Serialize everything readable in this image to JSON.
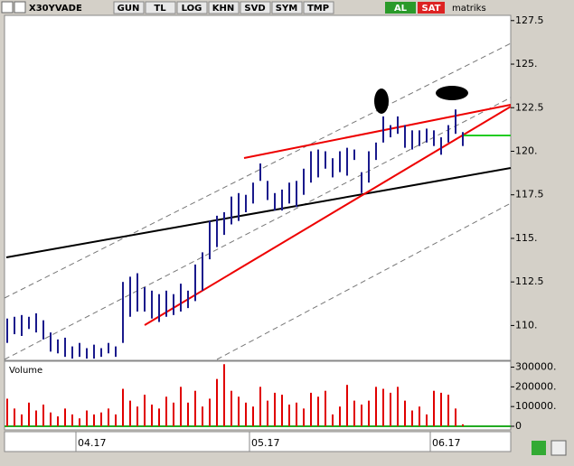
{
  "toolbar": {
    "symbol": "X30YVADE",
    "buttons": [
      "GUN",
      "TL",
      "LOG",
      "KHN",
      "SVD",
      "SYM",
      "TMP"
    ],
    "buy": "AL",
    "sell": "SAT",
    "brand": "matriks"
  },
  "chart_data": [
    {
      "type": "range-bar",
      "color": "#1a1a8c",
      "categories": [
        null,
        null,
        null,
        null,
        null,
        null,
        null,
        null,
        null,
        null,
        null,
        null,
        "04.17",
        null,
        null,
        null,
        null,
        null,
        null,
        null,
        null,
        null,
        null,
        null,
        null,
        null,
        null,
        null,
        null,
        null,
        null,
        null,
        null,
        null,
        null,
        null,
        "05.17",
        null,
        null,
        null,
        null,
        null,
        null,
        null,
        null,
        null,
        null,
        null,
        null,
        null,
        null,
        null,
        null,
        null,
        null,
        null,
        null,
        null,
        null,
        null,
        null,
        "06.17",
        null,
        null
      ],
      "high": [
        110.4,
        110.5,
        110.6,
        110.5,
        110.7,
        110.3,
        109.6,
        109.2,
        109.3,
        108.8,
        109,
        108.7,
        108.9,
        108.7,
        109,
        108.8,
        112.5,
        112.8,
        113,
        112.2,
        112,
        111.8,
        112,
        111.8,
        112.4,
        112,
        113.5,
        114.2,
        116,
        116.3,
        116.5,
        117.4,
        117.6,
        117.5,
        118.2,
        119.3,
        118.3,
        117.6,
        117.8,
        118.2,
        118.3,
        119,
        120,
        120.1,
        120,
        119.6,
        120,
        120.2,
        120.1,
        118.8,
        120,
        120.5,
        122,
        121.5,
        122,
        121.5,
        121.2,
        121.2,
        121.3,
        121.2,
        120.8,
        121.5,
        122.4,
        121.1
      ],
      "low": [
        109,
        109.5,
        109.4,
        109.8,
        109.6,
        109.2,
        108.5,
        108.4,
        108.2,
        108.1,
        108.2,
        108.1,
        108.1,
        108.2,
        108.4,
        108.2,
        109,
        110.5,
        110.8,
        110.8,
        110.4,
        110.2,
        110.5,
        110.6,
        110.8,
        111,
        111.4,
        112,
        113.8,
        114.5,
        115.2,
        115.8,
        116,
        116.5,
        117,
        118.3,
        117.2,
        116.6,
        116.6,
        117,
        116.8,
        117.5,
        118.2,
        118.5,
        119,
        118.5,
        118.8,
        118.6,
        119.5,
        117.6,
        118.2,
        119.5,
        120.5,
        120.8,
        121,
        120.2,
        120.1,
        120.3,
        120.5,
        120.3,
        119.8,
        120.5,
        121,
        120.3
      ],
      "ylim": [
        108,
        127.8
      ],
      "yticks": [
        {
          "value": 127.5,
          "label": "127.5"
        },
        {
          "value": 125,
          "label": "125."
        },
        {
          "value": 122.5,
          "label": "122.5"
        },
        {
          "value": 120,
          "label": "120."
        },
        {
          "value": 117.5,
          "label": "117.5"
        },
        {
          "value": 115,
          "label": "115."
        },
        {
          "value": 112.5,
          "label": "112.5"
        },
        {
          "value": 110,
          "label": "110."
        }
      ]
    },
    {
      "type": "bar",
      "title": "Volume",
      "color": "#e00000",
      "values": [
        140000,
        90000,
        60000,
        120000,
        80000,
        110000,
        70000,
        50000,
        90000,
        60000,
        40000,
        80000,
        60000,
        70000,
        90000,
        60000,
        190000,
        130000,
        100000,
        160000,
        110000,
        90000,
        150000,
        120000,
        200000,
        120000,
        180000,
        100000,
        140000,
        240000,
        315000,
        180000,
        150000,
        120000,
        100000,
        200000,
        130000,
        170000,
        160000,
        110000,
        120000,
        90000,
        170000,
        150000,
        180000,
        60000,
        100000,
        210000,
        130000,
        110000,
        130000,
        200000,
        190000,
        170000,
        200000,
        130000,
        80000,
        100000,
        60000,
        180000,
        170000,
        160000,
        90000,
        10000
      ],
      "ylim": [
        0,
        330000
      ],
      "yticks": [
        {
          "value": 300000,
          "label": "300000."
        },
        {
          "value": 200000,
          "label": "200000."
        },
        {
          "value": 100000,
          "label": "100000."
        },
        0
      ]
    }
  ]
}
